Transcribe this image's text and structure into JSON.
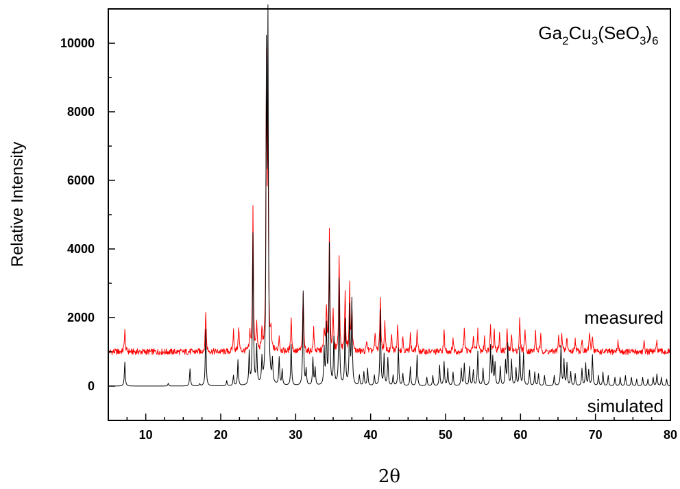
{
  "chart_data": {
    "type": "line",
    "title": "",
    "annotation": {
      "formula_parts": [
        {
          "text": "Ga",
          "sub": false
        },
        {
          "text": "2",
          "sub": true
        },
        {
          "text": "Cu",
          "sub": false
        },
        {
          "text": "3",
          "sub": true
        },
        {
          "text": "(SeO",
          "sub": false
        },
        {
          "text": "3",
          "sub": true
        },
        {
          "text": ")",
          "sub": false
        },
        {
          "text": "6",
          "sub": true
        }
      ]
    },
    "xlabel": "2θ",
    "ylabel": "Relative Intensity",
    "xlim": [
      5,
      80
    ],
    "ylim": [
      -1000,
      11000
    ],
    "xticks": [
      10,
      20,
      30,
      40,
      50,
      60,
      70,
      80
    ],
    "yticks": [
      0,
      2000,
      4000,
      6000,
      8000,
      10000
    ],
    "series": [
      {
        "name": "measured",
        "color": "#ff0000",
        "baseline": 1000,
        "peaks": [
          [
            7.2,
            1650
          ],
          [
            18.0,
            2200
          ],
          [
            21.7,
            1600
          ],
          [
            22.4,
            1750
          ],
          [
            23.9,
            1500
          ],
          [
            24.3,
            5150
          ],
          [
            24.8,
            1750
          ],
          [
            25.5,
            1600
          ],
          [
            26.1,
            9100
          ],
          [
            26.3,
            7450
          ],
          [
            26.7,
            1550
          ],
          [
            27.8,
            1450
          ],
          [
            29.4,
            2050
          ],
          [
            31.0,
            2750
          ],
          [
            32.4,
            1650
          ],
          [
            33.8,
            1650
          ],
          [
            34.1,
            2300
          ],
          [
            34.5,
            4550
          ],
          [
            35.0,
            2100
          ],
          [
            35.8,
            3850
          ],
          [
            36.6,
            2750
          ],
          [
            37.2,
            2900
          ],
          [
            37.5,
            2300
          ],
          [
            39.5,
            1350
          ],
          [
            40.6,
            1500
          ],
          [
            41.3,
            2650
          ],
          [
            41.9,
            1800
          ],
          [
            42.8,
            1450
          ],
          [
            43.6,
            1800
          ],
          [
            44.3,
            1450
          ],
          [
            45.3,
            1500
          ],
          [
            46.2,
            1600
          ],
          [
            49.8,
            1600
          ],
          [
            51.0,
            1400
          ],
          [
            52.5,
            1750
          ],
          [
            53.7,
            1450
          ],
          [
            54.3,
            1650
          ],
          [
            55.2,
            1400
          ],
          [
            56.0,
            1850
          ],
          [
            56.5,
            1650
          ],
          [
            57.2,
            1500
          ],
          [
            58.2,
            1600
          ],
          [
            58.8,
            1450
          ],
          [
            59.9,
            1950
          ],
          [
            60.6,
            1650
          ],
          [
            62.0,
            1550
          ],
          [
            62.7,
            1450
          ],
          [
            65.1,
            1450
          ],
          [
            65.5,
            1550
          ],
          [
            66.2,
            1450
          ],
          [
            67.3,
            1400
          ],
          [
            68.2,
            1400
          ],
          [
            69.2,
            1550
          ],
          [
            69.6,
            1500
          ],
          [
            73.0,
            1300
          ],
          [
            76.5,
            1250
          ],
          [
            78.2,
            1300
          ]
        ]
      },
      {
        "name": "simulated",
        "color": "#000000",
        "baseline": 0,
        "peaks": [
          [
            7.2,
            700
          ],
          [
            13.0,
            80
          ],
          [
            15.9,
            500
          ],
          [
            17.2,
            60
          ],
          [
            18.0,
            1650
          ],
          [
            20.8,
            150
          ],
          [
            21.7,
            300
          ],
          [
            22.3,
            750
          ],
          [
            23.8,
            950
          ],
          [
            24.3,
            4400
          ],
          [
            24.8,
            1100
          ],
          [
            25.5,
            700
          ],
          [
            26.1,
            9100
          ],
          [
            26.3,
            10100
          ],
          [
            26.9,
            650
          ],
          [
            27.8,
            800
          ],
          [
            28.2,
            450
          ],
          [
            29.4,
            1200
          ],
          [
            31.0,
            2750
          ],
          [
            31.4,
            450
          ],
          [
            32.3,
            800
          ],
          [
            32.6,
            500
          ],
          [
            33.8,
            1050
          ],
          [
            34.1,
            1700
          ],
          [
            34.5,
            4100
          ],
          [
            35.1,
            1350
          ],
          [
            35.8,
            3100
          ],
          [
            36.6,
            1900
          ],
          [
            37.2,
            2250
          ],
          [
            37.5,
            2450
          ],
          [
            38.5,
            300
          ],
          [
            39.1,
            400
          ],
          [
            39.6,
            500
          ],
          [
            40.5,
            300
          ],
          [
            41.3,
            2200
          ],
          [
            41.8,
            900
          ],
          [
            42.3,
            800
          ],
          [
            43.0,
            300
          ],
          [
            43.7,
            1100
          ],
          [
            44.3,
            350
          ],
          [
            45.3,
            550
          ],
          [
            46.2,
            900
          ],
          [
            47.5,
            250
          ],
          [
            48.3,
            300
          ],
          [
            49.2,
            600
          ],
          [
            49.8,
            700
          ],
          [
            50.3,
            500
          ],
          [
            51.0,
            400
          ],
          [
            52.1,
            500
          ],
          [
            52.5,
            650
          ],
          [
            53.2,
            550
          ],
          [
            53.7,
            450
          ],
          [
            54.3,
            1000
          ],
          [
            55.0,
            500
          ],
          [
            56.0,
            1150
          ],
          [
            56.3,
            800
          ],
          [
            56.6,
            650
          ],
          [
            57.3,
            550
          ],
          [
            58.0,
            700
          ],
          [
            58.3,
            1200
          ],
          [
            58.8,
            750
          ],
          [
            59.4,
            500
          ],
          [
            59.9,
            1100
          ],
          [
            60.4,
            950
          ],
          [
            61.2,
            450
          ],
          [
            61.9,
            400
          ],
          [
            62.4,
            350
          ],
          [
            63.2,
            300
          ],
          [
            64.5,
            300
          ],
          [
            65.4,
            1150
          ],
          [
            65.8,
            750
          ],
          [
            66.2,
            650
          ],
          [
            66.7,
            400
          ],
          [
            67.3,
            350
          ],
          [
            68.2,
            500
          ],
          [
            68.7,
            650
          ],
          [
            69.1,
            450
          ],
          [
            69.6,
            900
          ],
          [
            70.4,
            300
          ],
          [
            71.0,
            400
          ],
          [
            71.7,
            300
          ],
          [
            72.6,
            250
          ],
          [
            73.3,
            250
          ],
          [
            74.0,
            300
          ],
          [
            74.8,
            250
          ],
          [
            75.5,
            200
          ],
          [
            76.3,
            250
          ],
          [
            77.0,
            200
          ],
          [
            77.7,
            250
          ],
          [
            78.2,
            350
          ],
          [
            78.8,
            250
          ],
          [
            79.5,
            200
          ]
        ]
      }
    ]
  }
}
